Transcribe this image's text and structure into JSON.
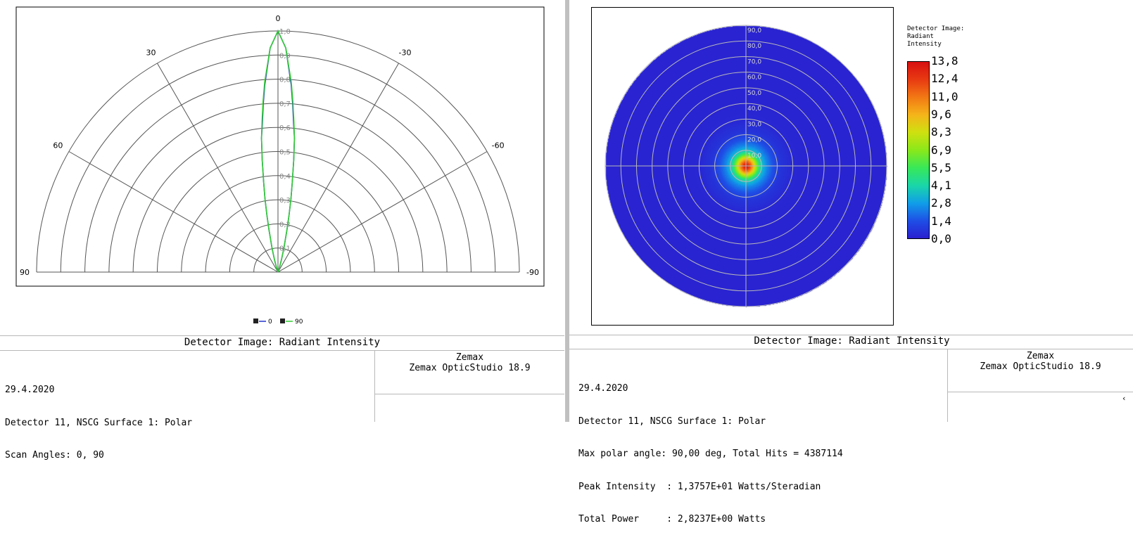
{
  "left_panel": {
    "title": "Detector Image: Radiant Intensity",
    "info_lines": [
      "29.4.2020",
      "Detector 11, NSCG Surface 1: Polar",
      "Scan Angles: 0, 90"
    ],
    "brand_line1": "Zemax",
    "brand_line2": "Zemax OpticStudio 18.9"
  },
  "right_panel": {
    "title": "Detector Image: Radiant Intensity",
    "info_lines": [
      "29.4.2020",
      "Detector 11, NSCG Surface 1: Polar",
      "Max polar angle: 90,00 deg, Total Hits = 4387114",
      "Peak Intensity  : 1,3757E+01 Watts/Steradian",
      "Total Power     : 2,8237E+00 Watts"
    ],
    "brand_line1": "Zemax",
    "brand_line2": "Zemax OpticStudio 18.9",
    "corner_mark": "‹"
  },
  "chart_data": [
    {
      "type": "polar-line",
      "angle_ticks": [
        {
          "angle": 0,
          "label": "0"
        },
        {
          "angle": 30,
          "label": "30"
        },
        {
          "angle": -30,
          "label": "-30"
        },
        {
          "angle": 60,
          "label": "60"
        },
        {
          "angle": -60,
          "label": "-60"
        },
        {
          "angle": 90,
          "label": "90"
        },
        {
          "angle": -90,
          "label": "-90"
        }
      ],
      "radial_ticks": [
        "0,1",
        "0,2",
        "0,3",
        "0,4",
        "0,5",
        "0,6",
        "0,7",
        "0,8",
        "0,9",
        "1,0"
      ],
      "radial_range": [
        0,
        1
      ],
      "series": [
        {
          "name": "0",
          "color": "#2233cc",
          "points": [
            [
              0,
              1.0
            ],
            [
              2,
              0.93
            ],
            [
              4,
              0.78
            ],
            [
              5,
              0.7
            ],
            [
              6,
              0.62
            ],
            [
              7,
              0.56
            ],
            [
              8,
              0.47
            ],
            [
              9,
              0.38
            ],
            [
              10,
              0.31
            ],
            [
              11,
              0.24
            ],
            [
              12,
              0.18
            ],
            [
              14,
              0.1
            ],
            [
              16,
              0.05
            ],
            [
              18,
              0.02
            ],
            [
              20,
              0
            ]
          ]
        },
        {
          "name": "90",
          "color": "#33cc33",
          "points": [
            [
              0,
              1.0
            ],
            [
              2,
              0.93
            ],
            [
              4,
              0.79
            ],
            [
              5,
              0.71
            ],
            [
              6,
              0.63
            ],
            [
              7,
              0.56
            ],
            [
              8,
              0.47
            ],
            [
              9,
              0.38
            ],
            [
              10,
              0.31
            ],
            [
              11,
              0.24
            ],
            [
              12,
              0.18
            ],
            [
              14,
              0.1
            ],
            [
              16,
              0.05
            ],
            [
              18,
              0.02
            ],
            [
              20,
              0
            ]
          ]
        }
      ]
    },
    {
      "type": "heatmap",
      "subtype": "polar-detector",
      "max_polar_angle_deg": 90,
      "ring_labels": [
        "10,0",
        "20,0",
        "30,0",
        "40,0",
        "50,0",
        "60,0",
        "70,0",
        "80,0",
        "90,0"
      ],
      "colorbar": {
        "title_lines": [
          "Detector Image:",
          "Radiant",
          "Intensity"
        ],
        "tick_labels": [
          "13,8",
          "12,4",
          "11,0",
          "9,6",
          "8,3",
          "6,9",
          "5,5",
          "4,1",
          "2,8",
          "1,4",
          "0,0"
        ],
        "range": [
          0,
          13.8
        ]
      },
      "peak_intensity": 13.757,
      "profile_deg": [
        [
          0,
          13.8
        ],
        [
          2,
          12.4
        ],
        [
          4,
          10.2
        ],
        [
          6,
          7.6
        ],
        [
          8,
          5.2
        ],
        [
          10,
          3.6
        ],
        [
          13,
          2.4
        ],
        [
          17,
          1.4
        ],
        [
          22,
          0.6
        ],
        [
          30,
          0.25
        ],
        [
          40,
          0.15
        ],
        [
          90,
          0.12
        ]
      ]
    }
  ]
}
